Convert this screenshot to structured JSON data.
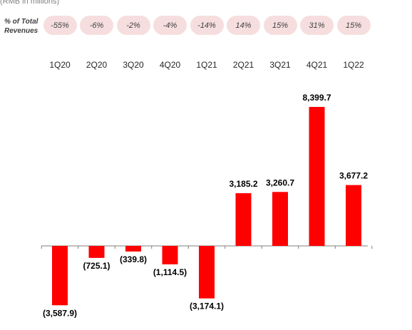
{
  "header": {
    "unit_label": "(RMB in millions)",
    "pct_label_line1": "% of Total",
    "pct_label_line2": "Revenues"
  },
  "colors": {
    "bar": "#ff0000",
    "pill_background": "#f6dede",
    "axis": "#7f7f7f"
  },
  "chart_data": {
    "type": "bar",
    "title": "",
    "xlabel": "",
    "ylabel": "",
    "categories": [
      "1Q20",
      "2Q20",
      "3Q20",
      "4Q20",
      "1Q21",
      "2Q21",
      "3Q21",
      "4Q21",
      "1Q22"
    ],
    "values": [
      -3587.9,
      -725.1,
      -339.8,
      -1114.5,
      -3174.1,
      3185.2,
      3260.7,
      8399.7,
      3677.2
    ],
    "value_labels": [
      "(3,587.9)",
      "(725.1)",
      "(339.8)",
      "(1,114.5)",
      "(3,174.1)",
      "3,185.2",
      "3,260.7",
      "8,399.7",
      "3,677.2"
    ],
    "pct_of_total_revenues": [
      "-55%",
      "-6%",
      "-2%",
      "-4%",
      "-14%",
      "14%",
      "15%",
      "31%",
      "15%"
    ],
    "ylim": [
      -3800,
      8800
    ],
    "grid": false,
    "legend": "none"
  }
}
